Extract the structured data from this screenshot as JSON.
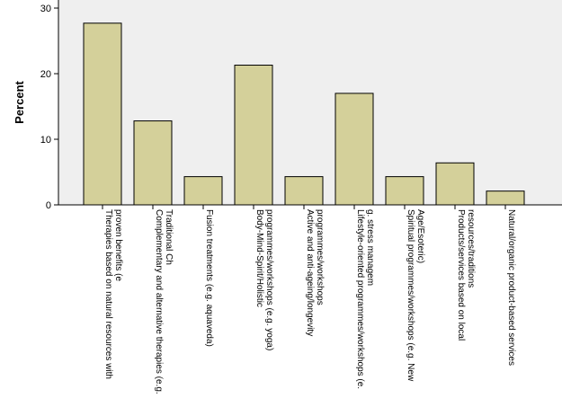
{
  "chart_data": {
    "type": "bar",
    "title": "",
    "xlabel": "",
    "ylabel": "Percent",
    "ylim": [
      0,
      30
    ],
    "yticks": [
      0,
      10,
      20,
      30
    ],
    "grid": false,
    "bar_color": "#d4d09a",
    "plot_bg": "#efefef",
    "categories": [
      [
        "Therapies based on natural resources with",
        "proven benefits (e"
      ],
      [
        "Complementary and alternative therapies (e.g.",
        "Traditional Ch"
      ],
      [
        "Fusion treatments (e.g. aquaveda)"
      ],
      [
        "Body-Mind-Spirit/Holistic",
        "programmes/workshops (e.g. yoga)"
      ],
      [
        "Active and anti-ageing/longevity",
        "programmes/workshops"
      ],
      [
        "Lifestyle-oriented programmes/workshops (e.",
        "g. stress managem"
      ],
      [
        "Spiritual programmes/workshops (e.g. New",
        "Age/Esoteric)"
      ],
      [
        "Products/services based on local",
        "resources/traditions"
      ],
      [
        "Natural/organic product-based services"
      ]
    ],
    "values": [
      27.7,
      12.8,
      4.3,
      21.3,
      4.3,
      17.0,
      4.3,
      6.4,
      2.1
    ]
  }
}
